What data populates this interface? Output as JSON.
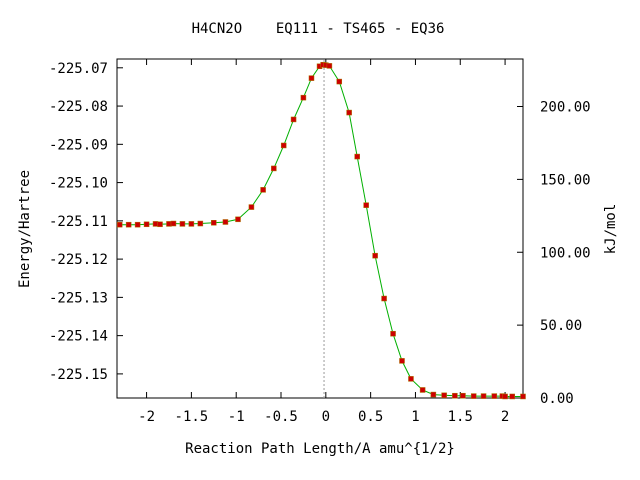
{
  "chart_data": {
    "type": "line",
    "title": "H4CN2O    EQ111 - TS465 - EQ36",
    "xlabel": "Reaction Path Length/A amu^{1/2}",
    "ylabel": "Energy/Hartree",
    "y2label": "kJ/mol",
    "xlim": [
      -2.33,
      2.2
    ],
    "ylim": [
      -225.1563,
      -225.0677
    ],
    "y2lim": [
      0,
      232.6
    ],
    "x_ticks": [
      -2,
      -1.5,
      -1,
      -0.5,
      0,
      0.5,
      1,
      1.5,
      2
    ],
    "x_tick_labels": [
      "-2",
      "-1.5",
      "-1",
      "-0.5",
      "0",
      "0.5",
      "1",
      "1.5",
      "2"
    ],
    "y_ticks": [
      -225.07,
      -225.08,
      -225.09,
      -225.1,
      -225.11,
      -225.12,
      -225.13,
      -225.14,
      -225.15
    ],
    "y_tick_labels": [
      "-225.07",
      "-225.08",
      "-225.09",
      "-225.10",
      "-225.11",
      "-225.12",
      "-225.13",
      "-225.14",
      "-225.15"
    ],
    "y2_ticks": [
      0,
      50,
      100,
      150,
      200
    ],
    "y2_tick_labels": [
      "0.00",
      "50.00",
      "100.00",
      "150.00",
      "200.00"
    ],
    "ts_marker_x": -0.02,
    "grid": false,
    "line_color": "#00b000",
    "marker_color": "#cc0000",
    "series": [
      {
        "x": [
          -2.3,
          -2.2,
          -2.1,
          -2.0,
          -1.9,
          -1.85,
          -1.75,
          -1.7,
          -1.6,
          -1.5,
          -1.4,
          -1.25,
          -1.12,
          -0.98,
          -0.83,
          -0.7,
          -0.58,
          -0.47,
          -0.36,
          -0.25,
          -0.16,
          -0.07,
          -0.03,
          0.0,
          0.04,
          0.15,
          0.26,
          0.35,
          0.45,
          0.55,
          0.65,
          0.75,
          0.85,
          0.95,
          1.08,
          1.2,
          1.32,
          1.44,
          1.53,
          1.65,
          1.76,
          1.88,
          1.97,
          2.0,
          2.08,
          2.2
        ],
        "y": [
          -225.111,
          -225.111,
          -225.111,
          -225.1109,
          -225.1108,
          -225.1109,
          -225.1108,
          -225.1107,
          -225.1108,
          -225.1108,
          -225.1107,
          -225.1105,
          -225.1103,
          -225.1096,
          -225.1064,
          -225.1019,
          -225.0963,
          -225.0903,
          -225.0835,
          -225.0778,
          -225.0727,
          -225.0696,
          -225.0692,
          -225.0693,
          -225.0695,
          -225.0736,
          -225.0817,
          -225.0932,
          -225.1059,
          -225.1191,
          -225.1303,
          -225.1395,
          -225.1466,
          -225.1513,
          -225.1542,
          -225.1554,
          -225.1556,
          -225.1557,
          -225.1557,
          -225.1558,
          -225.1558,
          -225.1558,
          -225.1558,
          -225.1559,
          -225.1559,
          -225.1559
        ]
      }
    ]
  }
}
